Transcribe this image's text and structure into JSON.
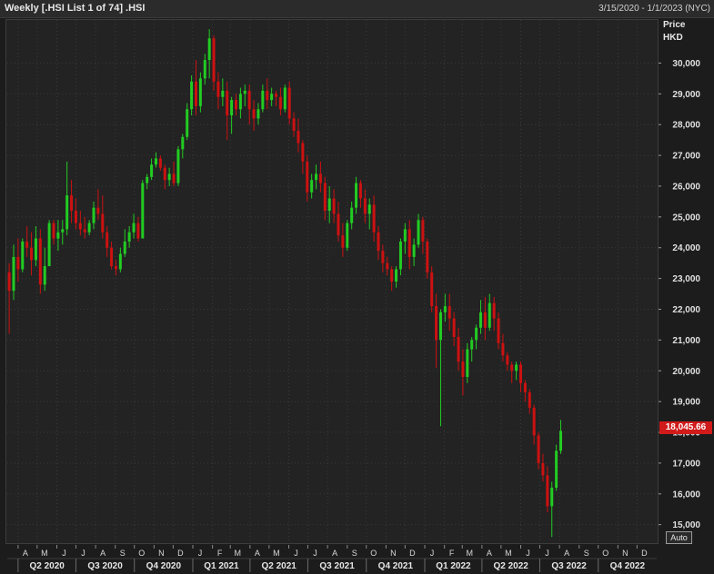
{
  "header": {
    "title": "Weekly [.HSI List 1 of 74] .HSI",
    "date_range": "3/15/2020 - 1/1/2023 (NYC)"
  },
  "axis": {
    "price_label": "Price",
    "currency_label": "HKD",
    "last_value_label": "18,045.66",
    "auto_label": "Auto"
  },
  "colors": {
    "up": "#22cc22",
    "down": "#cc1111",
    "last_badge": "#d11a1a",
    "grid": "#3a3a3a",
    "background": "#232323"
  },
  "chart_data": {
    "type": "candlestick",
    "title": "",
    "xlabel": "",
    "ylabel": "Price",
    "ylim": [
      14400,
      31400
    ],
    "grid": true,
    "y_ticks": [
      15000,
      16000,
      17000,
      18000,
      19000,
      20000,
      21000,
      22000,
      23000,
      24000,
      25000,
      26000,
      27000,
      28000,
      29000,
      30000
    ],
    "y_tick_labels": [
      "15,000",
      "16,000",
      "17,000",
      "18,000",
      "19,000",
      "20,000",
      "21,000",
      "22,000",
      "23,000",
      "24,000",
      "25,000",
      "26,000",
      "27,000",
      "28,000",
      "29,000",
      "30,000"
    ],
    "x_month_ticks": [
      {
        "label": "A",
        "date": "2020-04-01"
      },
      {
        "label": "M",
        "date": "2020-05-01"
      },
      {
        "label": "J",
        "date": "2020-06-01"
      },
      {
        "label": "J",
        "date": "2020-07-01"
      },
      {
        "label": "A",
        "date": "2020-08-01"
      },
      {
        "label": "S",
        "date": "2020-09-01"
      },
      {
        "label": "O",
        "date": "2020-10-01"
      },
      {
        "label": "N",
        "date": "2020-11-01"
      },
      {
        "label": "D",
        "date": "2020-12-01"
      },
      {
        "label": "J",
        "date": "2021-01-01"
      },
      {
        "label": "F",
        "date": "2021-02-01"
      },
      {
        "label": "M",
        "date": "2021-03-01"
      },
      {
        "label": "A",
        "date": "2021-04-01"
      },
      {
        "label": "M",
        "date": "2021-05-01"
      },
      {
        "label": "J",
        "date": "2021-06-01"
      },
      {
        "label": "J",
        "date": "2021-07-01"
      },
      {
        "label": "A",
        "date": "2021-08-01"
      },
      {
        "label": "S",
        "date": "2021-09-01"
      },
      {
        "label": "O",
        "date": "2021-10-01"
      },
      {
        "label": "N",
        "date": "2021-11-01"
      },
      {
        "label": "D",
        "date": "2021-12-01"
      },
      {
        "label": "J",
        "date": "2022-01-01"
      },
      {
        "label": "F",
        "date": "2022-02-01"
      },
      {
        "label": "M",
        "date": "2022-03-01"
      },
      {
        "label": "A",
        "date": "2022-04-01"
      },
      {
        "label": "M",
        "date": "2022-05-01"
      },
      {
        "label": "J",
        "date": "2022-06-01"
      },
      {
        "label": "J",
        "date": "2022-07-01"
      },
      {
        "label": "A",
        "date": "2022-08-01"
      },
      {
        "label": "S",
        "date": "2022-09-01"
      },
      {
        "label": "O",
        "date": "2022-10-01"
      },
      {
        "label": "N",
        "date": "2022-11-01"
      },
      {
        "label": "D",
        "date": "2022-12-01"
      }
    ],
    "x_quarter_ticks": [
      {
        "label": "Q2 2020",
        "start": "2020-04-01",
        "end": "2020-07-01"
      },
      {
        "label": "Q3 2020",
        "start": "2020-07-01",
        "end": "2020-10-01"
      },
      {
        "label": "Q4 2020",
        "start": "2020-10-01",
        "end": "2021-01-01"
      },
      {
        "label": "Q1 2021",
        "start": "2021-01-01",
        "end": "2021-04-01"
      },
      {
        "label": "Q2 2021",
        "start": "2021-04-01",
        "end": "2021-07-01"
      },
      {
        "label": "Q3 2021",
        "start": "2021-07-01",
        "end": "2021-10-01"
      },
      {
        "label": "Q4 2021",
        "start": "2021-10-01",
        "end": "2022-01-01"
      },
      {
        "label": "Q1 2022",
        "start": "2022-01-01",
        "end": "2022-04-01"
      },
      {
        "label": "Q2 2022",
        "start": "2022-04-01",
        "end": "2022-07-01"
      },
      {
        "label": "Q3 2022",
        "start": "2022-07-01",
        "end": "2022-10-01"
      },
      {
        "label": "Q4 2022",
        "start": "2022-10-01",
        "end": "2023-01-01"
      }
    ],
    "x_start": "2020-03-15",
    "x_end": "2023-01-01",
    "first_week": "2020-03-16",
    "candle_fields": [
      "open",
      "high",
      "low",
      "close"
    ],
    "candles": [
      [
        23200,
        23500,
        21200,
        22600
      ],
      [
        22600,
        24100,
        22300,
        23700
      ],
      [
        23700,
        24300,
        22900,
        23300
      ],
      [
        23300,
        24300,
        23200,
        24200
      ],
      [
        24200,
        24700,
        23700,
        24000
      ],
      [
        24000,
        24500,
        23100,
        23600
      ],
      [
        23600,
        24700,
        23400,
        24300
      ],
      [
        24300,
        24600,
        22500,
        22800
      ],
      [
        22800,
        24000,
        22600,
        23400
      ],
      [
        23400,
        24900,
        23400,
        24800
      ],
      [
        24800,
        24900,
        24100,
        24300
      ],
      [
        24300,
        24900,
        23900,
        24500
      ],
      [
        24500,
        24900,
        24100,
        24600
      ],
      [
        24600,
        26800,
        24400,
        25700
      ],
      [
        25700,
        26200,
        24800,
        25200
      ],
      [
        25200,
        25600,
        24600,
        24800
      ],
      [
        24800,
        25200,
        24400,
        24600
      ],
      [
        24600,
        25000,
        24300,
        24500
      ],
      [
        24500,
        24900,
        24400,
        24800
      ],
      [
        24800,
        25500,
        24600,
        25300
      ],
      [
        25300,
        25900,
        24900,
        25100
      ],
      [
        25100,
        25700,
        24300,
        24500
      ],
      [
        24500,
        24700,
        23700,
        24000
      ],
      [
        24000,
        24200,
        23300,
        23400
      ],
      [
        23400,
        23600,
        23100,
        23300
      ],
      [
        23300,
        24000,
        23200,
        23800
      ],
      [
        23800,
        24600,
        23700,
        24200
      ],
      [
        24200,
        24700,
        24000,
        24500
      ],
      [
        24500,
        25100,
        24300,
        24800
      ],
      [
        24800,
        25000,
        24200,
        24300
      ],
      [
        24300,
        26200,
        24300,
        26100
      ],
      [
        26100,
        26400,
        25900,
        26300
      ],
      [
        26300,
        26900,
        26200,
        26700
      ],
      [
        26700,
        27100,
        26600,
        26900
      ],
      [
        26900,
        27000,
        26500,
        26600
      ],
      [
        26600,
        26700,
        25900,
        26200
      ],
      [
        26200,
        26600,
        26000,
        26400
      ],
      [
        26400,
        26800,
        26000,
        26100
      ],
      [
        26100,
        27300,
        26000,
        27200
      ],
      [
        27200,
        27700,
        26900,
        27600
      ],
      [
        27600,
        28700,
        27500,
        28500
      ],
      [
        28500,
        29600,
        28300,
        29400
      ],
      [
        29400,
        30100,
        28300,
        28600
      ],
      [
        28600,
        29700,
        28400,
        29500
      ],
      [
        29500,
        30300,
        29300,
        30100
      ],
      [
        30100,
        31100,
        29500,
        30800
      ],
      [
        30800,
        30900,
        29100,
        29400
      ],
      [
        29400,
        29700,
        28500,
        28900
      ],
      [
        28900,
        29500,
        28600,
        29100
      ],
      [
        29100,
        29400,
        27500,
        28300
      ],
      [
        28300,
        28900,
        27700,
        28800
      ],
      [
        28800,
        29000,
        28300,
        28500
      ],
      [
        28500,
        29200,
        28200,
        29000
      ],
      [
        29000,
        29300,
        28600,
        29100
      ],
      [
        29100,
        29300,
        28000,
        28500
      ],
      [
        28500,
        28800,
        27800,
        28200
      ],
      [
        28200,
        28700,
        28000,
        28500
      ],
      [
        28500,
        29300,
        28400,
        29100
      ],
      [
        29100,
        29500,
        28500,
        28800
      ],
      [
        28800,
        29200,
        28600,
        29000
      ],
      [
        29000,
        29100,
        28600,
        28900
      ],
      [
        28900,
        29200,
        28300,
        28500
      ],
      [
        28500,
        29300,
        28400,
        29200
      ],
      [
        29200,
        29400,
        28000,
        28200
      ],
      [
        28200,
        28400,
        27600,
        27800
      ],
      [
        27800,
        28200,
        27100,
        27400
      ],
      [
        27400,
        27500,
        26400,
        26800
      ],
      [
        26800,
        27000,
        25500,
        25800
      ],
      [
        25800,
        26400,
        25600,
        26200
      ],
      [
        26200,
        26700,
        25900,
        26400
      ],
      [
        26400,
        26800,
        25800,
        26100
      ],
      [
        26100,
        26300,
        24900,
        25200
      ],
      [
        25200,
        26000,
        24800,
        25600
      ],
      [
        25600,
        25900,
        24800,
        25100
      ],
      [
        25100,
        25500,
        24200,
        24400
      ],
      [
        24400,
        24800,
        23700,
        24000
      ],
      [
        24000,
        24900,
        23900,
        24800
      ],
      [
        24800,
        25500,
        24600,
        25300
      ],
      [
        25300,
        26300,
        25100,
        26100
      ],
      [
        26100,
        26200,
        25300,
        25600
      ],
      [
        25600,
        25900,
        24800,
        25100
      ],
      [
        25100,
        25600,
        24600,
        25400
      ],
      [
        25400,
        25700,
        24200,
        24500
      ],
      [
        24500,
        24700,
        23600,
        23900
      ],
      [
        23900,
        24100,
        23200,
        23500
      ],
      [
        23500,
        23700,
        23100,
        23300
      ],
      [
        23300,
        23400,
        22600,
        22900
      ],
      [
        22900,
        23400,
        22700,
        23300
      ],
      [
        23300,
        24300,
        23100,
        24200
      ],
      [
        24200,
        24800,
        23800,
        24600
      ],
      [
        24600,
        24900,
        23300,
        23700
      ],
      [
        23700,
        24300,
        23400,
        24100
      ],
      [
        24100,
        25100,
        24000,
        24900
      ],
      [
        24900,
        25000,
        23800,
        24200
      ],
      [
        24200,
        24300,
        23000,
        23200
      ],
      [
        23200,
        23400,
        21900,
        22100
      ],
      [
        22100,
        22500,
        20100,
        21000
      ],
      [
        21000,
        22000,
        18200,
        21900
      ],
      [
        21900,
        22500,
        21600,
        22100
      ],
      [
        22100,
        22500,
        21300,
        21700
      ],
      [
        21700,
        21900,
        20800,
        21100
      ],
      [
        21100,
        21400,
        20000,
        20300
      ],
      [
        20300,
        20700,
        19200,
        19800
      ],
      [
        19800,
        20900,
        19600,
        20700
      ],
      [
        20700,
        21100,
        20300,
        21000
      ],
      [
        21000,
        21500,
        20700,
        21400
      ],
      [
        21400,
        22300,
        21200,
        21900
      ],
      [
        21900,
        22400,
        21000,
        21400
      ],
      [
        21400,
        22500,
        21300,
        22200
      ],
      [
        22200,
        22400,
        21300,
        21700
      ],
      [
        21700,
        21900,
        20700,
        20900
      ],
      [
        20900,
        21200,
        20300,
        20500
      ],
      [
        20500,
        20600,
        20000,
        20200
      ],
      [
        20200,
        20300,
        19600,
        20000
      ],
      [
        20000,
        20300,
        19700,
        20200
      ],
      [
        20200,
        20300,
        19300,
        19600
      ],
      [
        19600,
        19700,
        19000,
        19300
      ],
      [
        19300,
        19400,
        18600,
        18800
      ],
      [
        18800,
        18900,
        17600,
        17900
      ],
      [
        17900,
        18000,
        16800,
        17000
      ],
      [
        17000,
        17300,
        16400,
        16600
      ],
      [
        16600,
        16900,
        15400,
        15600
      ],
      [
        15600,
        16400,
        14600,
        16200
      ],
      [
        16200,
        17600,
        16100,
        17400
      ],
      [
        17400,
        18400,
        17300,
        18045.66
      ]
    ]
  }
}
